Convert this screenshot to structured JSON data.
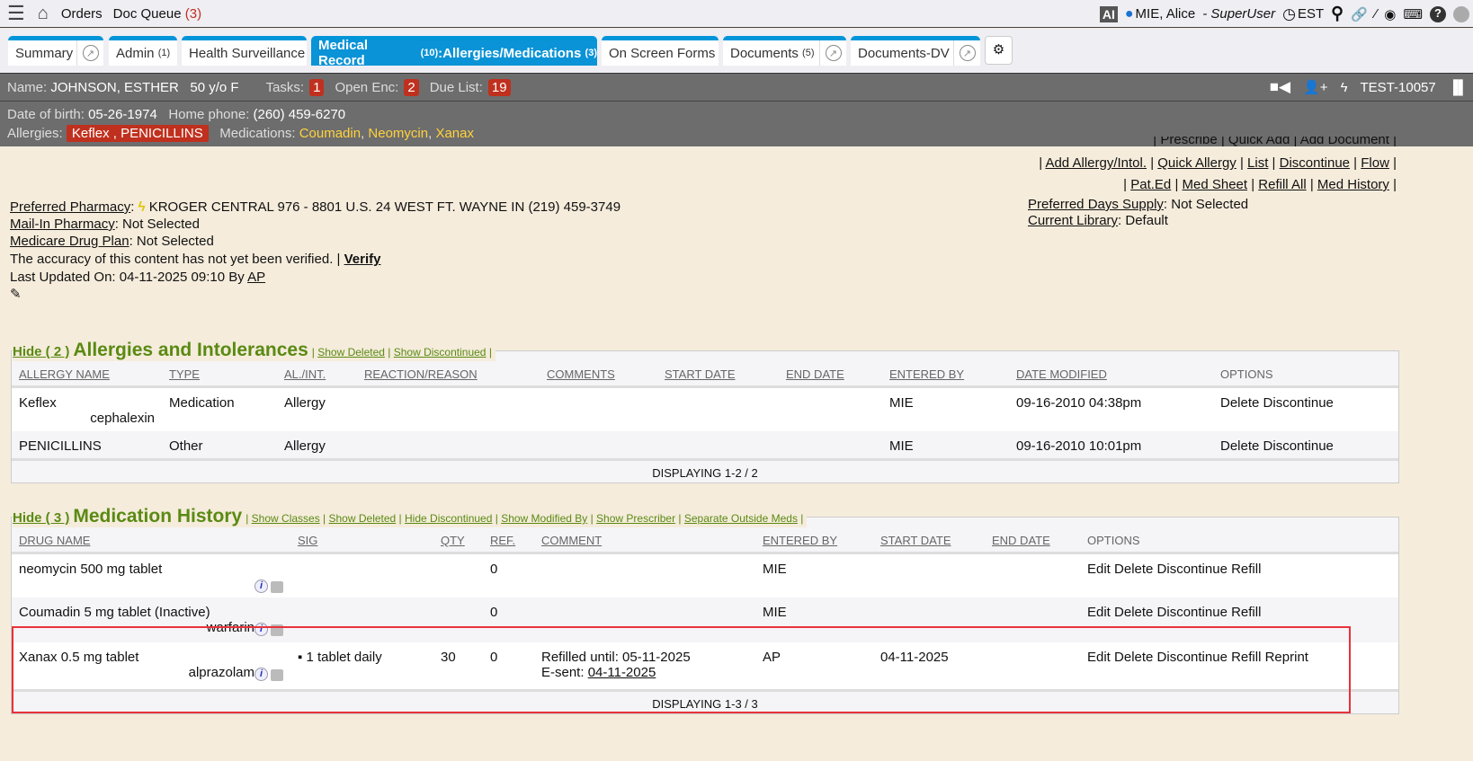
{
  "topbar": {
    "orders": "Orders",
    "doc_queue": "Doc Queue",
    "doc_queue_count": "(3)",
    "ai": "AI",
    "user": "MIE, Alice",
    "role": "- SuperUser",
    "timezone": "EST"
  },
  "tabs": [
    {
      "label": "Summary"
    },
    {
      "label": "Admin",
      "count": "(1)"
    },
    {
      "label": "Health Surveillance"
    },
    {
      "label": "Medical Record",
      "count": "(10)",
      "sub": ":Allergies/Medications",
      "sub_count": "(3)"
    },
    {
      "label": "On Screen Forms"
    },
    {
      "label": "Documents",
      "count": "(5)"
    },
    {
      "label": "Documents-DV"
    }
  ],
  "patient": {
    "name_label": "Name:",
    "name": "JOHNSON, ESTHER",
    "age_sex": "50 y/o F",
    "tasks_label": "Tasks:",
    "tasks": "1",
    "open_enc_label": "Open Enc:",
    "open_enc": "2",
    "due_list_label": "Due List:",
    "due_list": "19",
    "id": "TEST-10057",
    "dob_label": "Date of birth:",
    "dob": "05-26-1974",
    "phone_label": "Home phone:",
    "phone": "(260) 459-6270",
    "allergies_label": "Allergies:",
    "allergies": "Keflex , PENICILLINS",
    "medications_label": "Medications:",
    "medications": [
      "Coumadin",
      "Neomycin",
      "Xanax"
    ]
  },
  "actions": {
    "row0": "| Prescribe | Quick Add | Add Document |",
    "row1": [
      "Add Allergy/Intol.",
      "Quick Allergy",
      "List",
      "Discontinue",
      "Flow"
    ],
    "row2": [
      "Pat.Ed",
      "Med Sheet",
      "Refill All",
      "Med History"
    ],
    "days_supply_label": "Preferred Days Supply",
    "days_supply": ": Not Selected",
    "library_label": "Current Library",
    "library": ": Default"
  },
  "pharmacy": {
    "preferred_label": "Preferred Pharmacy",
    "preferred": "KROGER CENTRAL 976 - 8801 U.S. 24 WEST FT. WAYNE IN (219) 459-3749",
    "mail_label": "Mail-In Pharmacy",
    "mail": ": Not Selected",
    "plan_label": "Medicare Drug Plan",
    "plan": ": Not Selected",
    "accuracy": "The accuracy of this content has not yet been verified. |",
    "verify": "Verify",
    "updated": "Last Updated On: 04-11-2025 09:10 By",
    "updated_by": "AP"
  },
  "allergies": {
    "hide": "Hide ( 2 )",
    "title": "Allergies and Intolerances",
    "options": [
      "Show Deleted",
      "Show Discontinued"
    ],
    "columns": [
      "ALLERGY NAME",
      "TYPE",
      "AL./INT.",
      "REACTION/REASON",
      "COMMENTS",
      "START DATE",
      "END DATE",
      "ENTERED BY",
      "DATE MODIFIED",
      "OPTIONS"
    ],
    "rows": [
      {
        "name": "Keflex",
        "generic": "cephalexin",
        "type": "Medication",
        "alint": "Allergy",
        "entered_by": "MIE",
        "modified": "09-16-2010 04:38pm",
        "options": "Delete Discontinue"
      },
      {
        "name": "PENICILLINS",
        "generic": "",
        "type": "Other",
        "alint": "Allergy",
        "entered_by": "MIE",
        "modified": "09-16-2010 10:01pm",
        "options": "Delete Discontinue"
      }
    ],
    "footer": "DISPLAYING 1-2 / 2"
  },
  "medications": {
    "hide": "Hide ( 3 )",
    "title": "Medication History",
    "options": [
      "Show Classes",
      "Show Deleted",
      "Hide Discontinued",
      "Show Modified By",
      "Show Prescriber",
      "Separate Outside Meds"
    ],
    "columns": [
      "DRUG NAME",
      "SIG",
      "QTY",
      "REF.",
      "COMMENT",
      "ENTERED BY",
      "START DATE",
      "END DATE",
      "OPTIONS"
    ],
    "rows": [
      {
        "name": "neomycin 500 mg tablet",
        "generic": "",
        "sig": "",
        "qty": "",
        "ref": "0",
        "comment": "",
        "esent_label": "",
        "esent": "",
        "entered_by": "MIE",
        "start": "",
        "options": "Edit Delete Discontinue Refill"
      },
      {
        "name": "Coumadin 5 mg tablet (Inactive)",
        "generic": "warfarin",
        "sig": "",
        "qty": "",
        "ref": "0",
        "comment": "",
        "esent_label": "",
        "esent": "",
        "entered_by": "MIE",
        "start": "",
        "options": "Edit Delete Discontinue Refill"
      },
      {
        "name": "Xanax 0.5 mg tablet",
        "generic": "alprazolam",
        "sig": "▪ 1 tablet daily",
        "qty": "30",
        "ref": "0",
        "comment": "Refilled until: 05-11-2025",
        "esent_label": "E-sent: ",
        "esent": "04-11-2025",
        "entered_by": "AP",
        "start": "04-11-2025",
        "options": "Edit Delete Discontinue Refill Reprint"
      }
    ],
    "footer": "DISPLAYING 1-3 / 3"
  },
  "colors": {
    "accent": "#0a93d6",
    "section_title": "#5a8a12",
    "badge": "#c0301e",
    "med_link": "#ffd23c",
    "highlight": "#e8323a"
  }
}
